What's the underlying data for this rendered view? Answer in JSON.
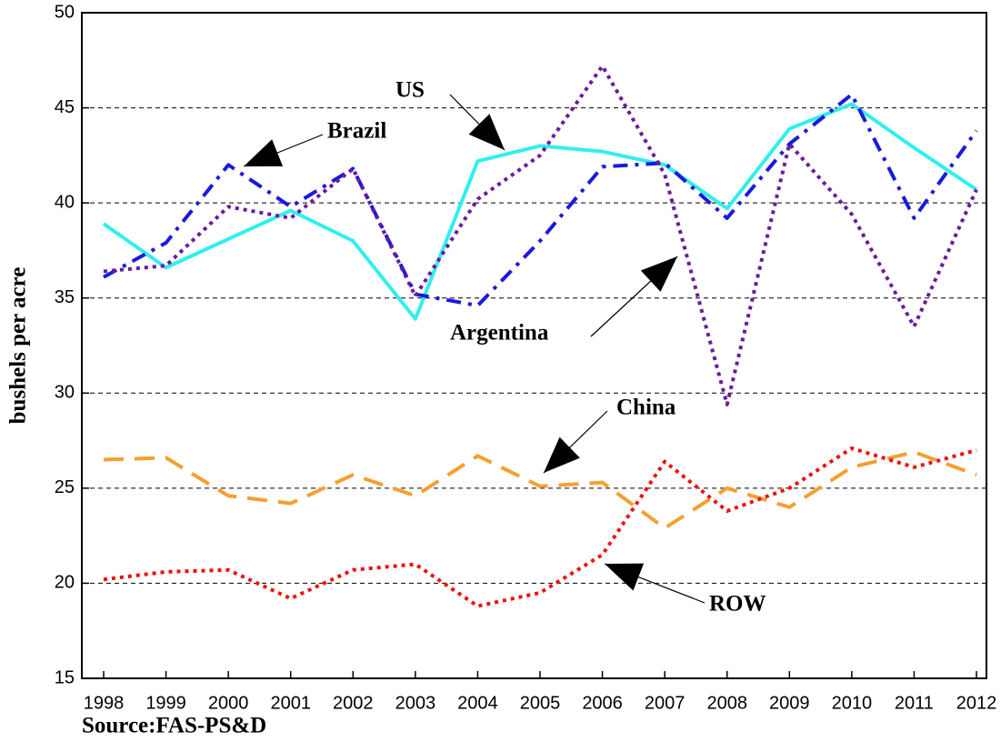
{
  "chart_data": {
    "type": "line",
    "y_label": "bushels per acre",
    "source": "Source:FAS-PS&D",
    "categories": [
      "1998",
      "1999",
      "2000",
      "2001",
      "2002",
      "2003",
      "2004",
      "2005",
      "2006",
      "2007",
      "2008",
      "2009",
      "2010",
      "2011",
      "2012"
    ],
    "series": [
      {
        "name": "US",
        "color": "#33eeee",
        "style": "solid",
        "values": [
          38.9,
          36.6,
          38.1,
          39.6,
          38.0,
          33.9,
          42.2,
          43.0,
          42.7,
          42.0,
          39.7,
          43.9,
          45.2,
          42.9,
          40.7
        ]
      },
      {
        "name": "Brazil",
        "color": "#1a1adc",
        "style": "dashdot",
        "values": [
          36.1,
          37.9,
          42.0,
          39.8,
          41.8,
          35.2,
          34.6,
          38.0,
          41.9,
          42.1,
          39.2,
          43.1,
          45.7,
          39.2,
          43.8
        ]
      },
      {
        "name": "Argentina",
        "color": "#6a1aa0",
        "style": "dotted",
        "values": [
          36.4,
          36.7,
          39.8,
          39.2,
          41.8,
          35.1,
          40.2,
          42.5,
          47.2,
          41.5,
          29.4,
          43.1,
          39.4,
          33.5,
          40.7
        ]
      },
      {
        "name": "China",
        "color": "#f5a030",
        "style": "dashed",
        "values": [
          26.5,
          26.6,
          24.6,
          24.2,
          25.7,
          24.6,
          26.7,
          25.1,
          25.3,
          22.9,
          25.0,
          24.0,
          26.1,
          26.9,
          25.7
        ]
      },
      {
        "name": "ROW",
        "color": "#ee1111",
        "style": "dotted",
        "values": [
          20.2,
          20.6,
          20.7,
          19.2,
          20.7,
          21.0,
          18.8,
          19.5,
          21.5,
          26.4,
          23.8,
          25.0,
          27.1,
          26.1,
          27.0
        ]
      }
    ],
    "ylim": [
      15,
      50
    ],
    "yticks": [
      15,
      20,
      25,
      30,
      35,
      40,
      45,
      50
    ],
    "grid": true
  }
}
